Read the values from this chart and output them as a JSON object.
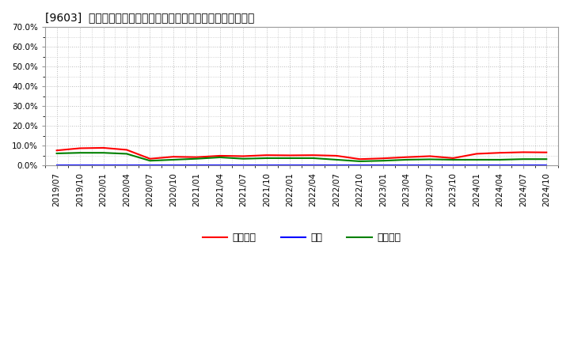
{
  "title": "[9603]  売上債権、在庫、買入債務の総資産に対する比率の推移",
  "ylim": [
    0.0,
    0.7
  ],
  "yticks": [
    0.0,
    0.1,
    0.2,
    0.3,
    0.4,
    0.5,
    0.6,
    0.7
  ],
  "background_color": "#ffffff",
  "plot_bg_color": "#ffffff",
  "grid_color": "#bbbbbb",
  "legend_labels": [
    "売上債権",
    "在庫",
    "買入債務"
  ],
  "legend_colors": [
    "#ff0000",
    "#0000ff",
    "#008000"
  ],
  "dates": [
    "2019/07",
    "2019/10",
    "2020/01",
    "2020/04",
    "2020/07",
    "2020/10",
    "2021/01",
    "2021/04",
    "2021/07",
    "2021/10",
    "2022/01",
    "2022/04",
    "2022/07",
    "2022/10",
    "2023/01",
    "2023/04",
    "2023/07",
    "2023/10",
    "2024/01",
    "2024/04",
    "2024/07",
    "2024/10"
  ],
  "series_uriage": [
    0.077,
    0.088,
    0.09,
    0.08,
    0.035,
    0.045,
    0.043,
    0.05,
    0.048,
    0.053,
    0.052,
    0.053,
    0.05,
    0.033,
    0.037,
    0.043,
    0.048,
    0.038,
    0.06,
    0.065,
    0.068,
    0.067
  ],
  "series_zaiko": [
    0.001,
    0.001,
    0.001,
    0.001,
    0.001,
    0.001,
    0.001,
    0.001,
    0.001,
    0.001,
    0.001,
    0.001,
    0.001,
    0.001,
    0.001,
    0.001,
    0.001,
    0.001,
    0.001,
    0.001,
    0.001,
    0.001
  ],
  "series_kainyu": [
    0.062,
    0.065,
    0.065,
    0.06,
    0.025,
    0.03,
    0.035,
    0.042,
    0.035,
    0.038,
    0.038,
    0.038,
    0.03,
    0.022,
    0.025,
    0.03,
    0.032,
    0.03,
    0.03,
    0.03,
    0.033,
    0.033
  ]
}
